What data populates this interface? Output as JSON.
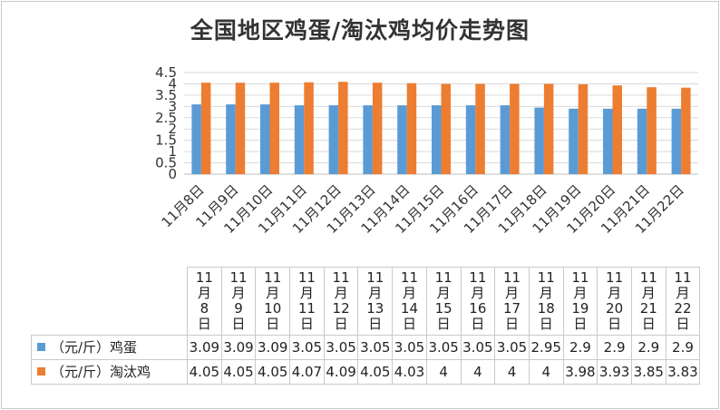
{
  "chart_data": {
    "type": "bar",
    "title": "全国地区鸡蛋/淘汰鸡均价走势图",
    "categories": [
      "11月8日",
      "11月9日",
      "11月10日",
      "11月11日",
      "11月12日",
      "11月13日",
      "11月14日",
      "11月15日",
      "11月16日",
      "11月17日",
      "11月18日",
      "11月19日",
      "11月20日",
      "11月21日",
      "11月22日"
    ],
    "series": [
      {
        "name": "（元/斤）鸡蛋",
        "color": "#5b9bd5",
        "values": [
          3.09,
          3.09,
          3.09,
          3.05,
          3.05,
          3.05,
          3.05,
          3.05,
          3.05,
          3.05,
          2.95,
          2.9,
          2.9,
          2.9,
          2.9
        ],
        "labels": [
          "3.09",
          "3.09",
          "3.09",
          "3.05",
          "3.05",
          "3.05",
          "3.05",
          "3.05",
          "3.05",
          "3.05",
          "2.95",
          "2.9",
          "2.9",
          "2.9",
          "2.9"
        ]
      },
      {
        "name": "（元/斤）淘汰鸡",
        "color": "#ed7d31",
        "values": [
          4.05,
          4.05,
          4.05,
          4.07,
          4.09,
          4.05,
          4.03,
          4,
          4,
          4,
          4,
          3.98,
          3.93,
          3.85,
          3.83
        ],
        "labels": [
          "4.05",
          "4.05",
          "4.05",
          "4.07",
          "4.09",
          "4.05",
          "4.03",
          "4",
          "4",
          "4",
          "4",
          "3.98",
          "3.93",
          "3.85",
          "3.83"
        ]
      }
    ],
    "yticks": [
      "0",
      "0.5",
      "1",
      "1.5",
      "2",
      "2.5",
      "3",
      "3.5",
      "4",
      "4.5"
    ],
    "ylim": [
      0,
      4.5
    ],
    "grid": true,
    "legend": "data-table"
  }
}
